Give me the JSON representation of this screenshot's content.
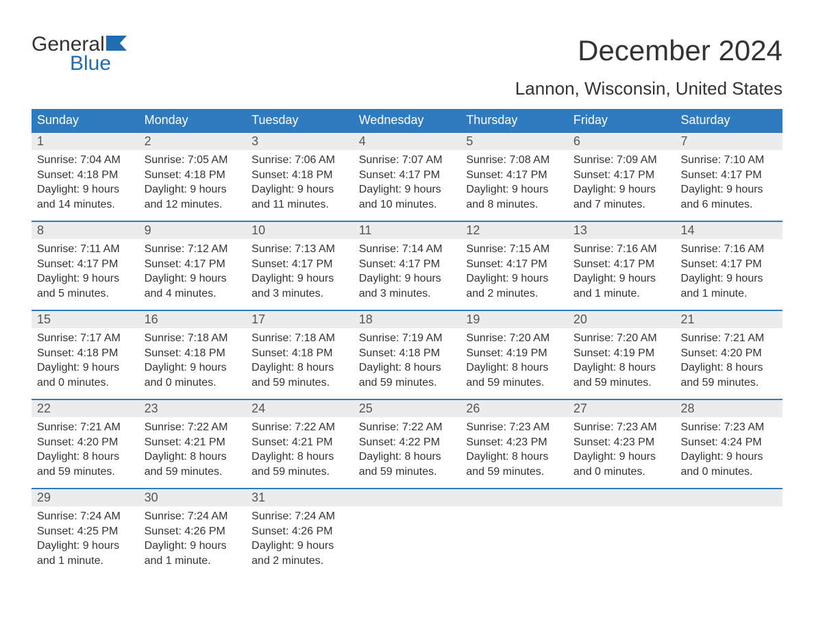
{
  "logo": {
    "word1": "General",
    "word2": "Blue",
    "flag_color": "#1f6cb0"
  },
  "title": "December 2024",
  "location": "Lannon, Wisconsin, United States",
  "colors": {
    "header_bg": "#2f7bbf",
    "header_text": "#ffffff",
    "week_border": "#2f7bbf",
    "daynum_bg": "#ececec",
    "text": "#333333",
    "logo_blue": "#1f6cb0"
  },
  "daysOfWeek": [
    "Sunday",
    "Monday",
    "Tuesday",
    "Wednesday",
    "Thursday",
    "Friday",
    "Saturday"
  ],
  "weeks": [
    [
      {
        "n": "1",
        "sunrise": "7:04 AM",
        "sunset": "4:18 PM",
        "dl1": "9 hours",
        "dl2": "and 14 minutes."
      },
      {
        "n": "2",
        "sunrise": "7:05 AM",
        "sunset": "4:18 PM",
        "dl1": "9 hours",
        "dl2": "and 12 minutes."
      },
      {
        "n": "3",
        "sunrise": "7:06 AM",
        "sunset": "4:18 PM",
        "dl1": "9 hours",
        "dl2": "and 11 minutes."
      },
      {
        "n": "4",
        "sunrise": "7:07 AM",
        "sunset": "4:17 PM",
        "dl1": "9 hours",
        "dl2": "and 10 minutes."
      },
      {
        "n": "5",
        "sunrise": "7:08 AM",
        "sunset": "4:17 PM",
        "dl1": "9 hours",
        "dl2": "and 8 minutes."
      },
      {
        "n": "6",
        "sunrise": "7:09 AM",
        "sunset": "4:17 PM",
        "dl1": "9 hours",
        "dl2": "and 7 minutes."
      },
      {
        "n": "7",
        "sunrise": "7:10 AM",
        "sunset": "4:17 PM",
        "dl1": "9 hours",
        "dl2": "and 6 minutes."
      }
    ],
    [
      {
        "n": "8",
        "sunrise": "7:11 AM",
        "sunset": "4:17 PM",
        "dl1": "9 hours",
        "dl2": "and 5 minutes."
      },
      {
        "n": "9",
        "sunrise": "7:12 AM",
        "sunset": "4:17 PM",
        "dl1": "9 hours",
        "dl2": "and 4 minutes."
      },
      {
        "n": "10",
        "sunrise": "7:13 AM",
        "sunset": "4:17 PM",
        "dl1": "9 hours",
        "dl2": "and 3 minutes."
      },
      {
        "n": "11",
        "sunrise": "7:14 AM",
        "sunset": "4:17 PM",
        "dl1": "9 hours",
        "dl2": "and 3 minutes."
      },
      {
        "n": "12",
        "sunrise": "7:15 AM",
        "sunset": "4:17 PM",
        "dl1": "9 hours",
        "dl2": "and 2 minutes."
      },
      {
        "n": "13",
        "sunrise": "7:16 AM",
        "sunset": "4:17 PM",
        "dl1": "9 hours",
        "dl2": "and 1 minute."
      },
      {
        "n": "14",
        "sunrise": "7:16 AM",
        "sunset": "4:17 PM",
        "dl1": "9 hours",
        "dl2": "and 1 minute."
      }
    ],
    [
      {
        "n": "15",
        "sunrise": "7:17 AM",
        "sunset": "4:18 PM",
        "dl1": "9 hours",
        "dl2": "and 0 minutes."
      },
      {
        "n": "16",
        "sunrise": "7:18 AM",
        "sunset": "4:18 PM",
        "dl1": "9 hours",
        "dl2": "and 0 minutes."
      },
      {
        "n": "17",
        "sunrise": "7:18 AM",
        "sunset": "4:18 PM",
        "dl1": "8 hours",
        "dl2": "and 59 minutes."
      },
      {
        "n": "18",
        "sunrise": "7:19 AM",
        "sunset": "4:18 PM",
        "dl1": "8 hours",
        "dl2": "and 59 minutes."
      },
      {
        "n": "19",
        "sunrise": "7:20 AM",
        "sunset": "4:19 PM",
        "dl1": "8 hours",
        "dl2": "and 59 minutes."
      },
      {
        "n": "20",
        "sunrise": "7:20 AM",
        "sunset": "4:19 PM",
        "dl1": "8 hours",
        "dl2": "and 59 minutes."
      },
      {
        "n": "21",
        "sunrise": "7:21 AM",
        "sunset": "4:20 PM",
        "dl1": "8 hours",
        "dl2": "and 59 minutes."
      }
    ],
    [
      {
        "n": "22",
        "sunrise": "7:21 AM",
        "sunset": "4:20 PM",
        "dl1": "8 hours",
        "dl2": "and 59 minutes."
      },
      {
        "n": "23",
        "sunrise": "7:22 AM",
        "sunset": "4:21 PM",
        "dl1": "8 hours",
        "dl2": "and 59 minutes."
      },
      {
        "n": "24",
        "sunrise": "7:22 AM",
        "sunset": "4:21 PM",
        "dl1": "8 hours",
        "dl2": "and 59 minutes."
      },
      {
        "n": "25",
        "sunrise": "7:22 AM",
        "sunset": "4:22 PM",
        "dl1": "8 hours",
        "dl2": "and 59 minutes."
      },
      {
        "n": "26",
        "sunrise": "7:23 AM",
        "sunset": "4:23 PM",
        "dl1": "8 hours",
        "dl2": "and 59 minutes."
      },
      {
        "n": "27",
        "sunrise": "7:23 AM",
        "sunset": "4:23 PM",
        "dl1": "9 hours",
        "dl2": "and 0 minutes."
      },
      {
        "n": "28",
        "sunrise": "7:23 AM",
        "sunset": "4:24 PM",
        "dl1": "9 hours",
        "dl2": "and 0 minutes."
      }
    ],
    [
      {
        "n": "29",
        "sunrise": "7:24 AM",
        "sunset": "4:25 PM",
        "dl1": "9 hours",
        "dl2": "and 1 minute."
      },
      {
        "n": "30",
        "sunrise": "7:24 AM",
        "sunset": "4:26 PM",
        "dl1": "9 hours",
        "dl2": "and 1 minute."
      },
      {
        "n": "31",
        "sunrise": "7:24 AM",
        "sunset": "4:26 PM",
        "dl1": "9 hours",
        "dl2": "and 2 minutes."
      },
      null,
      null,
      null,
      null
    ]
  ],
  "labels": {
    "sunrise": "Sunrise: ",
    "sunset": "Sunset: ",
    "daylight": "Daylight: "
  }
}
